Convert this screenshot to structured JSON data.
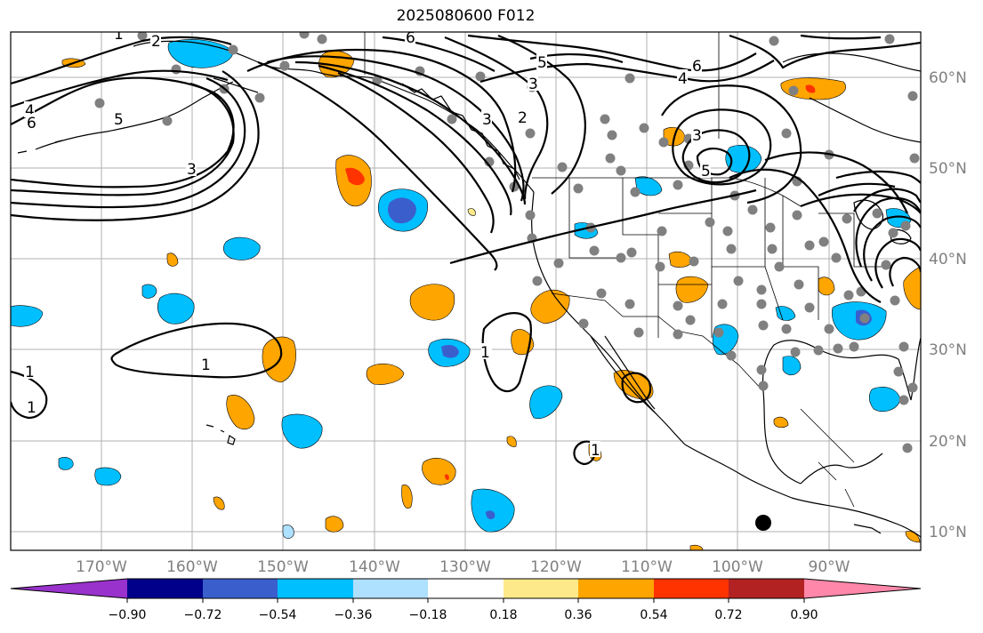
{
  "title": "2025080600 F012",
  "map": {
    "longitude_labels": [
      "170°W",
      "160°W",
      "150°W",
      "140°W",
      "130°W",
      "120°W",
      "110°W",
      "100°W",
      "90°W"
    ],
    "latitude_labels": [
      "60°N",
      "50°N",
      "40°N",
      "30°N",
      "20°N",
      "10°N"
    ],
    "grid": true,
    "contour_labels": [
      "1",
      "1",
      "1",
      "1",
      "1",
      "1",
      "2",
      "2",
      "3",
      "3",
      "3",
      "3",
      "4",
      "4",
      "5",
      "5",
      "5",
      "6",
      "6",
      "6"
    ],
    "colors": {
      "positive": [
        "#fde98a",
        "#ffa500",
        "#ff3300",
        "#b22222",
        "#ff88aa"
      ],
      "negative": [
        "#aee0ff",
        "#00bfff",
        "#3a5fcd",
        "#00008b",
        "#9932cc"
      ],
      "station_dot": "#808080"
    }
  },
  "colorbar": {
    "tick_labels": [
      "−0.90",
      "−0.72",
      "−0.54",
      "−0.36",
      "−0.18",
      "0.18",
      "0.36",
      "0.54",
      "0.72",
      "0.90"
    ],
    "segment_colors": [
      "#9932cc",
      "#00008b",
      "#3a5fcd",
      "#00bfff",
      "#aee0ff",
      "#ffffff",
      "#fde98a",
      "#ffa500",
      "#ff3300",
      "#b22222",
      "#ff88aa"
    ]
  }
}
